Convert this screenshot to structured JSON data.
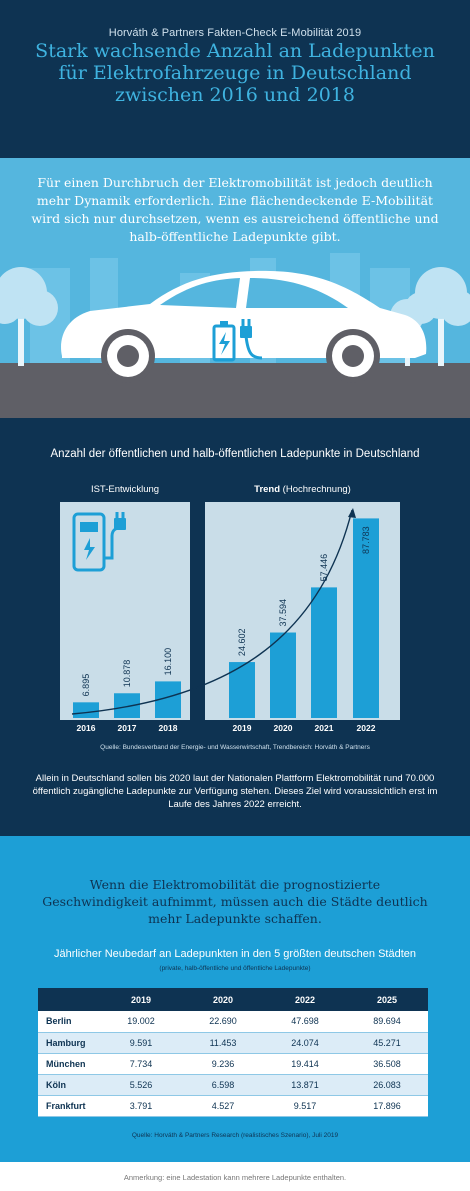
{
  "header": {
    "kicker": "Horváth & Partners Fakten-Check E-Mobilität 2019",
    "title": "Stark wachsende Anzahl an Ladepunkten für Elektrofahrzeuge in Deutschland zwischen 2016 und 2018"
  },
  "hero": {
    "intro": "Für einen Durchbruch der Elektromobilität ist jedoch deutlich mehr Dynamik erforderlich. Eine flächendeckende E-Mobilität wird sich nur durchsetzen, wenn es ausreichend öffentliche und halb-öffentliche Ladepunkte gibt."
  },
  "chart_section": {
    "title": "Anzahl der öffentlichen und halb-öffentlichen Ladepunkte in Deutschland",
    "label_ist": "IST-Entwicklung",
    "label_trend_bold": "Trend",
    "label_trend_rest": " (Hochrechnung)",
    "source": "Quelle: Bundesverband der Energie- und Wasserwirtschaft, Trendbereich: Horváth & Partners",
    "note": "Allein in Deutschland sollen bis 2020 laut der Nationalen Plattform Elektromobilität rund 70.000 öffentlich zugängliche Ladepunkte zur Verfügung stehen. Dieses Ziel wird voraussichtlich erst im Laufe des Jahres 2022 erreicht."
  },
  "chart_data": {
    "type": "bar",
    "categories": [
      "2016",
      "2017",
      "2018",
      "2019",
      "2020",
      "2021",
      "2022"
    ],
    "values": [
      6895,
      10878,
      16100,
      24602,
      37594,
      57446,
      87783
    ],
    "value_labels": [
      "6.895",
      "10.878",
      "16.100",
      "24.602",
      "37.594",
      "57.446",
      "87.783"
    ],
    "groups": [
      {
        "name": "IST-Entwicklung",
        "categories": [
          "2016",
          "2017",
          "2018"
        ]
      },
      {
        "name": "Trend (Hochrechnung)",
        "categories": [
          "2019",
          "2020",
          "2021",
          "2022"
        ]
      }
    ],
    "ylim": [
      0,
      95000
    ],
    "grid": false,
    "trend_arrow": true,
    "colors": {
      "bar": "#1d9fd6",
      "panel": "#c9dde8",
      "arrow": "#0e3352",
      "label": "#0e3352"
    }
  },
  "city_section": {
    "lead": "Wenn die Elektromobilität die prognostizierte Geschwindigkeit aufnimmt, müssen auch die Städte deutlich mehr Ladepunkte schaffen.",
    "title": "Jährlicher Neubedarf an Ladepunkten in den 5 größten deutschen Städten",
    "subtitle": "(private, halb-öffentliche und öffentliche Ladepunkte)",
    "columns": [
      "",
      "2019",
      "2020",
      "2022",
      "2025"
    ],
    "rows": [
      {
        "city": "Berlin",
        "values": [
          "19.002",
          "22.690",
          "47.698",
          "89.694"
        ]
      },
      {
        "city": "Hamburg",
        "values": [
          "9.591",
          "11.453",
          "24.074",
          "45.271"
        ]
      },
      {
        "city": "München",
        "values": [
          "7.734",
          "9.236",
          "19.414",
          "36.508"
        ]
      },
      {
        "city": "Köln",
        "values": [
          "5.526",
          "6.598",
          "13.871",
          "26.083"
        ]
      },
      {
        "city": "Frankfurt",
        "values": [
          "3.791",
          "4.527",
          "9.517",
          "17.896"
        ]
      }
    ],
    "source": "Quelle: Horváth & Partners Research (realistisches Szenario), Juli 2019"
  },
  "footer": {
    "note": "Anmerkung: eine Ladestation kann mehrere Ladepunkte enthalten."
  },
  "colors": {
    "navy": "#0e3352",
    "sky": "#55b6de",
    "blue": "#1d9fd6",
    "title_blue": "#3fb3e0"
  }
}
